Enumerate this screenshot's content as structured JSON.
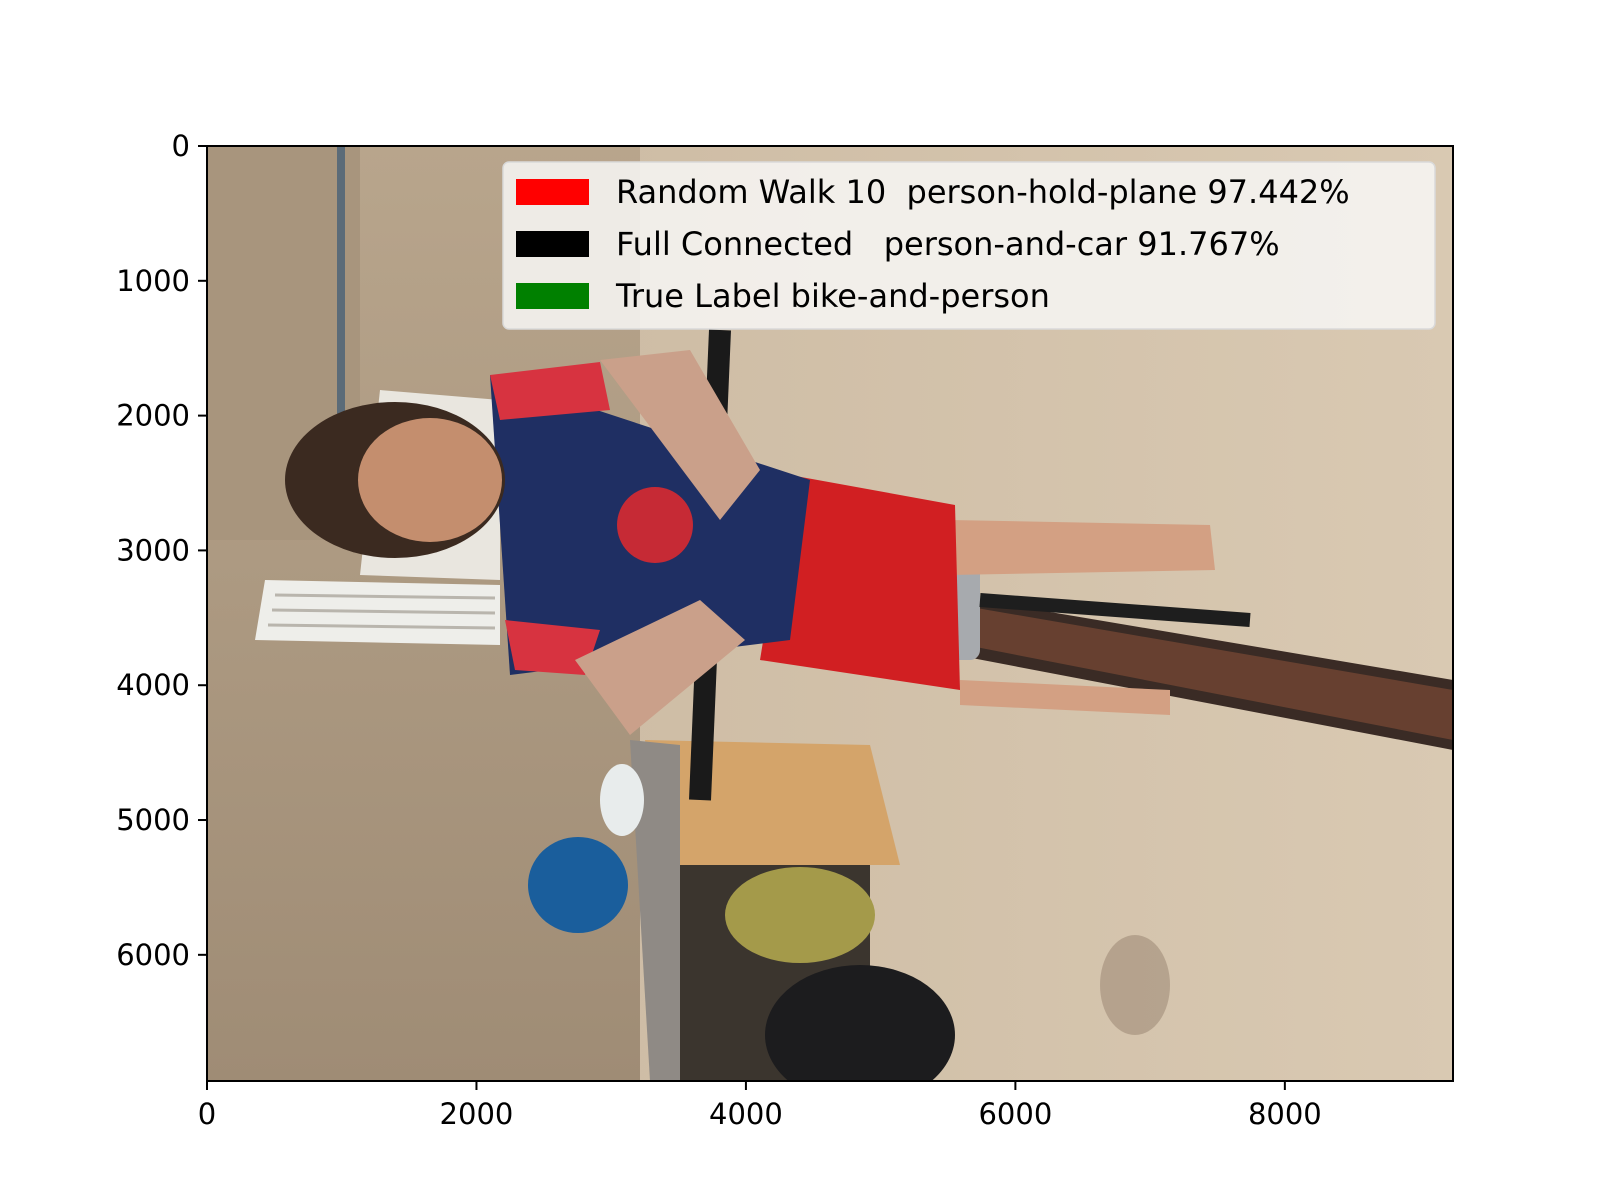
{
  "image": {
    "description_icon": "photo-icon",
    "x_ticks": [
      "0",
      "2000",
      "4000",
      "6000",
      "8000"
    ],
    "y_ticks": [
      "0",
      "1000",
      "2000",
      "3000",
      "4000",
      "5000",
      "6000"
    ],
    "x_tick_values": [
      0,
      2000,
      4000,
      6000,
      8000
    ],
    "y_tick_values": [
      0,
      1000,
      2000,
      3000,
      4000,
      5000,
      6000
    ],
    "xlim": [
      0,
      9248
    ],
    "ylim": [
      0,
      6936
    ]
  },
  "legend": {
    "placement": "top-right",
    "items": [
      {
        "label": "Random Walk 10  person-hold-plane 97.442%",
        "color": "#ff0000"
      },
      {
        "label": "Full Connected   person-and-car 91.767%",
        "color": "#000000"
      },
      {
        "label": "True Label bike-and-person",
        "color": "#008000"
      }
    ]
  }
}
